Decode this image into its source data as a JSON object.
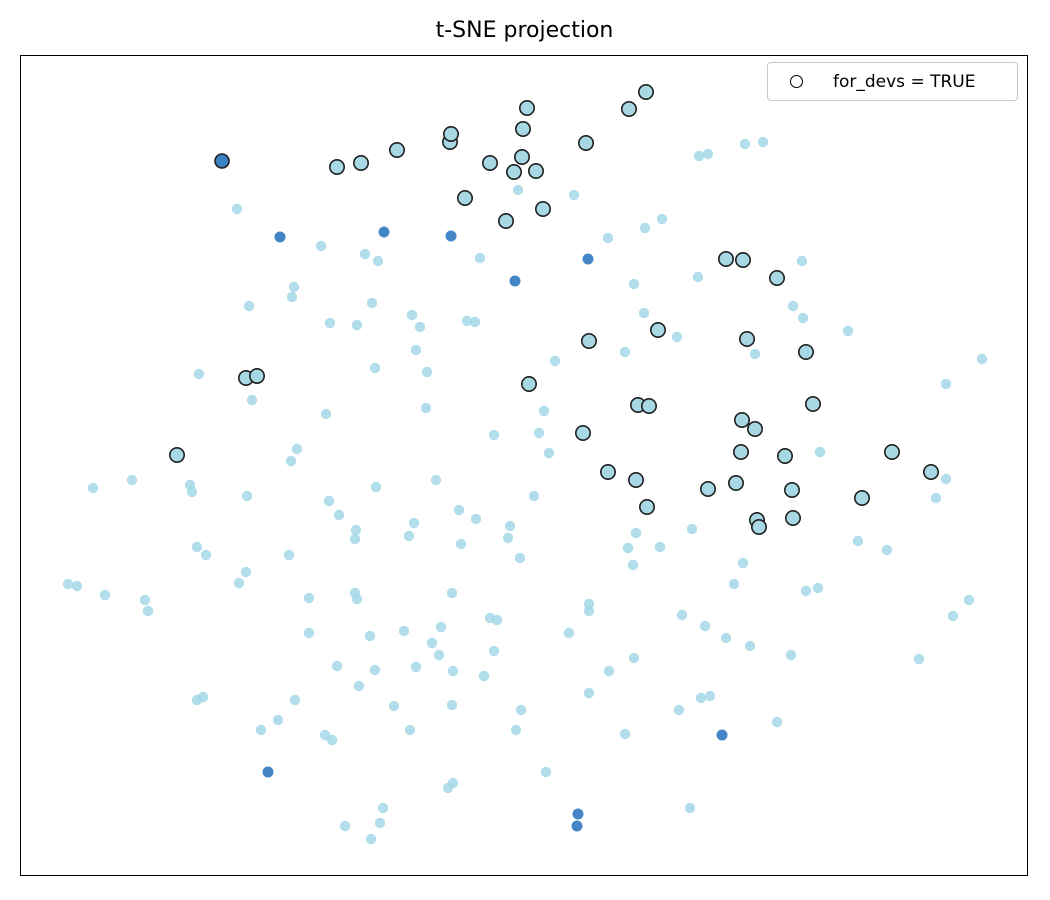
{
  "title": "t-SNE projection",
  "legend": {
    "label": "for_devs = TRUE",
    "marker": "open-circle"
  },
  "colors": {
    "point_light": "#9fd6e7",
    "point_dark": "#3a7ec2",
    "point_edge": "#1f1f1f",
    "plot_border": "#000000",
    "legend_border": "#c8c8c8",
    "background": "#ffffff"
  },
  "chart_data": {
    "type": "scatter",
    "title": "t-SNE projection",
    "xlabel": "",
    "ylabel": "",
    "axes_visible": false,
    "grid": false,
    "legend_position": "upper-right",
    "legend_entries": [
      {
        "marker": "open-circle",
        "label": "for_devs = TRUE"
      }
    ],
    "coordinate_space": "screenshot-pixels (1050x900), plot frame x 20-1029, y 55-877",
    "series": [
      {
        "name": "for_devs_false_light",
        "marker": "circle",
        "color": "#9fd6e7",
        "fill_opacity": 0.8,
        "edge": "none",
        "radius": 5.2,
        "points": [
          [
            237,
            209
          ],
          [
            321,
            246
          ],
          [
            365,
            254
          ],
          [
            378,
            261
          ],
          [
            480,
            258
          ],
          [
            518,
            190
          ],
          [
            574,
            195
          ],
          [
            699,
            156
          ],
          [
            708,
            154
          ],
          [
            745,
            144
          ],
          [
            763,
            142
          ],
          [
            662,
            219
          ],
          [
            645,
            228
          ],
          [
            608,
            238
          ],
          [
            802,
            261
          ],
          [
            249,
            306
          ],
          [
            199,
            374
          ],
          [
            252,
            400
          ],
          [
            294,
            287
          ],
          [
            292,
            297
          ],
          [
            372,
            303
          ],
          [
            412,
            315
          ],
          [
            330,
            323
          ],
          [
            357,
            325
          ],
          [
            420,
            327
          ],
          [
            467,
            321
          ],
          [
            475,
            322
          ],
          [
            416,
            350
          ],
          [
            375,
            368
          ],
          [
            427,
            372
          ],
          [
            426,
            408
          ],
          [
            326,
            414
          ],
          [
            494,
            435
          ],
          [
            297,
            449
          ],
          [
            291,
            461
          ],
          [
            698,
            277
          ],
          [
            634,
            284
          ],
          [
            644,
            313
          ],
          [
            677,
            337
          ],
          [
            625,
            352
          ],
          [
            755,
            354
          ],
          [
            555,
            361
          ],
          [
            544,
            411
          ],
          [
            539,
            433
          ],
          [
            549,
            453
          ],
          [
            793,
            306
          ],
          [
            803,
            318
          ],
          [
            848,
            331
          ],
          [
            982,
            359
          ],
          [
            946,
            384
          ],
          [
            820,
            452
          ],
          [
            93,
            488
          ],
          [
            132,
            480
          ],
          [
            190,
            485
          ],
          [
            192,
            492
          ],
          [
            247,
            496
          ],
          [
            197,
            547
          ],
          [
            206,
            555
          ],
          [
            246,
            572
          ],
          [
            239,
            583
          ],
          [
            68,
            584
          ],
          [
            77,
            586
          ],
          [
            105,
            595
          ],
          [
            145,
            600
          ],
          [
            148,
            611
          ],
          [
            436,
            480
          ],
          [
            376,
            487
          ],
          [
            329,
            501
          ],
          [
            339,
            515
          ],
          [
            459,
            510
          ],
          [
            476,
            519
          ],
          [
            414,
            523
          ],
          [
            356,
            530
          ],
          [
            510,
            526
          ],
          [
            409,
            536
          ],
          [
            355,
            539
          ],
          [
            461,
            544
          ],
          [
            508,
            538
          ],
          [
            520,
            558
          ],
          [
            289,
            555
          ],
          [
            355,
            593
          ],
          [
            357,
            599
          ],
          [
            309,
            598
          ],
          [
            452,
            593
          ],
          [
            490,
            618
          ],
          [
            497,
            620
          ],
          [
            309,
            633
          ],
          [
            370,
            636
          ],
          [
            404,
            631
          ],
          [
            441,
            627
          ],
          [
            432,
            643
          ],
          [
            439,
            655
          ],
          [
            494,
            651
          ],
          [
            337,
            666
          ],
          [
            375,
            670
          ],
          [
            416,
            667
          ],
          [
            453,
            671
          ],
          [
            484,
            676
          ],
          [
            534,
            496
          ],
          [
            692,
            529
          ],
          [
            636,
            533
          ],
          [
            628,
            548
          ],
          [
            660,
            547
          ],
          [
            633,
            565
          ],
          [
            743,
            563
          ],
          [
            734,
            584
          ],
          [
            589,
            604
          ],
          [
            589,
            611
          ],
          [
            682,
            615
          ],
          [
            705,
            626
          ],
          [
            569,
            633
          ],
          [
            726,
            638
          ],
          [
            750,
            646
          ],
          [
            634,
            658
          ],
          [
            609,
            671
          ],
          [
            946,
            479
          ],
          [
            936,
            498
          ],
          [
            858,
            541
          ],
          [
            887,
            550
          ],
          [
            806,
            591
          ],
          [
            818,
            588
          ],
          [
            969,
            600
          ],
          [
            953,
            616
          ],
          [
            791,
            655
          ],
          [
            919,
            659
          ],
          [
            197,
            700
          ],
          [
            203,
            697
          ],
          [
            261,
            730
          ],
          [
            359,
            686
          ],
          [
            295,
            700
          ],
          [
            394,
            706
          ],
          [
            452,
            705
          ],
          [
            278,
            720
          ],
          [
            410,
            730
          ],
          [
            325,
            735
          ],
          [
            332,
            740
          ],
          [
            516,
            730
          ],
          [
            521,
            710
          ],
          [
            453,
            783
          ],
          [
            448,
            788
          ],
          [
            383,
            808
          ],
          [
            380,
            823
          ],
          [
            345,
            826
          ],
          [
            371,
            839
          ],
          [
            589,
            693
          ],
          [
            679,
            710
          ],
          [
            701,
            698
          ],
          [
            710,
            696
          ],
          [
            625,
            734
          ],
          [
            777,
            722
          ],
          [
            546,
            772
          ],
          [
            690,
            808
          ]
        ]
      },
      {
        "name": "for_devs_false_dark",
        "marker": "circle",
        "color": "#3a7ec2",
        "fill_opacity": 0.95,
        "edge": "none",
        "radius": 5.5,
        "points": [
          [
            280,
            237
          ],
          [
            384,
            232
          ],
          [
            451,
            236
          ],
          [
            515,
            281
          ],
          [
            588,
            259
          ],
          [
            722,
            735
          ],
          [
            268,
            772
          ],
          [
            578,
            814
          ],
          [
            577,
            826
          ]
        ]
      },
      {
        "name": "for_devs_true_light",
        "marker": "circle",
        "color": "#a8d8e4",
        "fill_opacity": 1,
        "edge": "#1f1f1f",
        "edge_width": 1.6,
        "radius": 7.2,
        "points": [
          [
            337,
            167
          ],
          [
            361,
            163
          ],
          [
            397,
            150
          ],
          [
            450,
            142
          ],
          [
            451,
            134
          ],
          [
            527,
            108
          ],
          [
            523,
            129
          ],
          [
            490,
            163
          ],
          [
            522,
            157
          ],
          [
            514,
            172
          ],
          [
            465,
            198
          ],
          [
            506,
            221
          ],
          [
            586,
            143
          ],
          [
            536,
            171
          ],
          [
            543,
            209
          ],
          [
            646,
            92
          ],
          [
            629,
            109
          ],
          [
            726,
            259
          ],
          [
            743,
            260
          ],
          [
            777,
            278
          ],
          [
            658,
            330
          ],
          [
            747,
            339
          ],
          [
            589,
            341
          ],
          [
            529,
            384
          ],
          [
            638,
            405
          ],
          [
            649,
            406
          ],
          [
            742,
            420
          ],
          [
            755,
            429
          ],
          [
            583,
            433
          ],
          [
            741,
            452
          ],
          [
            806,
            352
          ],
          [
            813,
            404
          ],
          [
            785,
            456
          ],
          [
            892,
            452
          ],
          [
            931,
            472
          ],
          [
            608,
            472
          ],
          [
            636,
            480
          ],
          [
            708,
            489
          ],
          [
            736,
            483
          ],
          [
            647,
            507
          ],
          [
            757,
            520
          ],
          [
            759,
            527
          ],
          [
            792,
            490
          ],
          [
            793,
            518
          ],
          [
            862,
            498
          ],
          [
            246,
            378
          ],
          [
            257,
            376
          ],
          [
            177,
            455
          ]
        ]
      },
      {
        "name": "for_devs_true_dark",
        "marker": "circle",
        "color": "#3b82c4",
        "fill_opacity": 1,
        "edge": "#1f1f1f",
        "edge_width": 1.6,
        "radius": 7.0,
        "points": [
          [
            222,
            161
          ]
        ]
      }
    ]
  }
}
